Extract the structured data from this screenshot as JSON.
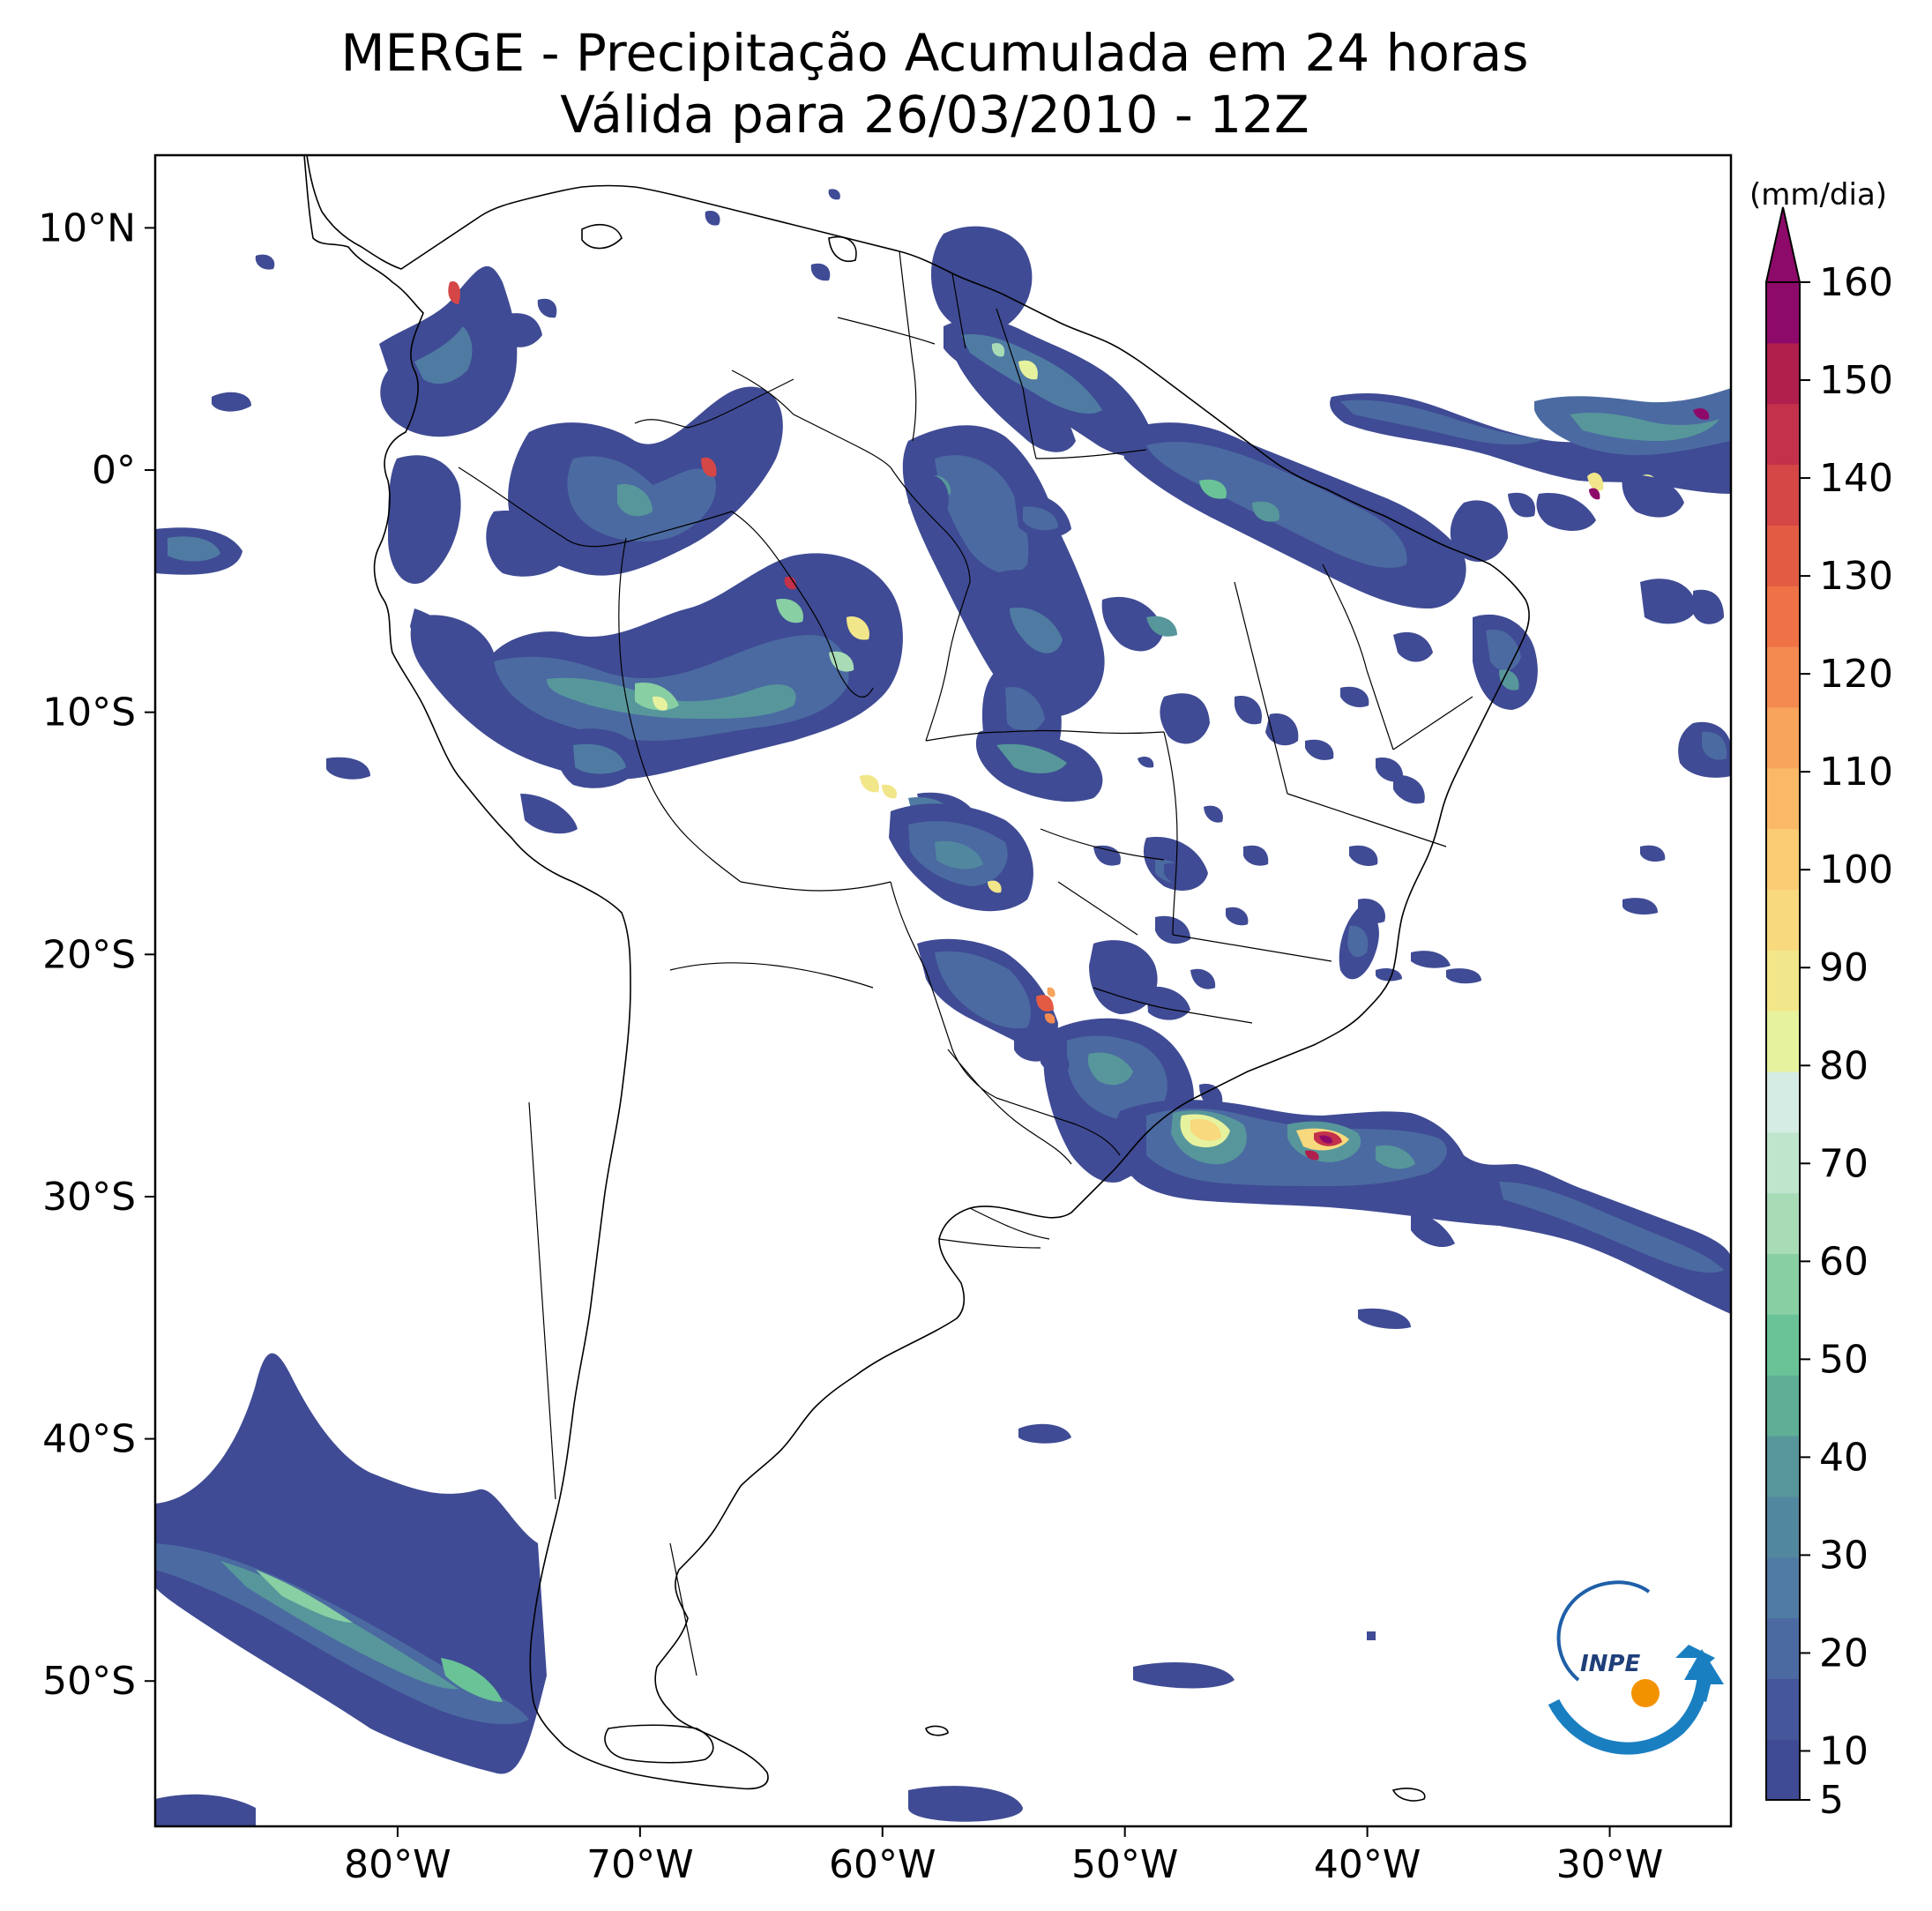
{
  "title": {
    "line1": "MERGE - Precipitação Acumulada em 24 horas",
    "line2": "Válida para 26/03/2010 - 12Z"
  },
  "map": {
    "projection": "PlateCarree",
    "lon_range": [
      -90,
      -25
    ],
    "lat_range": [
      -56,
      13
    ],
    "lon_ticks": [
      {
        "value": -80,
        "label": "80°W"
      },
      {
        "value": -70,
        "label": "70°W"
      },
      {
        "value": -60,
        "label": "60°W"
      },
      {
        "value": -50,
        "label": "50°W"
      },
      {
        "value": -40,
        "label": "40°W"
      },
      {
        "value": -30,
        "label": "30°W"
      }
    ],
    "lat_ticks": [
      {
        "value": 10,
        "label": "10°N"
      },
      {
        "value": 0,
        "label": "0°"
      },
      {
        "value": -10,
        "label": "10°S"
      },
      {
        "value": -20,
        "label": "20°S"
      },
      {
        "value": -30,
        "label": "30°S"
      },
      {
        "value": -40,
        "label": "40°S"
      },
      {
        "value": -50,
        "label": "50°S"
      }
    ]
  },
  "colorbar": {
    "unit_label": "(mm/dia)",
    "min": 5,
    "max": 160,
    "extend": "max",
    "ticks": [
      5,
      10,
      20,
      30,
      40,
      50,
      60,
      70,
      80,
      90,
      100,
      110,
      120,
      130,
      140,
      150,
      160
    ],
    "tick_labels": [
      "5",
      "10",
      "20",
      "30",
      "40",
      "50",
      "60",
      "70",
      "80",
      "90",
      "100",
      "110",
      "120",
      "130",
      "140",
      "150",
      "160"
    ],
    "colors": [
      "#3f4b94",
      "#45569a",
      "#4b6aa1",
      "#4f7ba3",
      "#52889f",
      "#57979b",
      "#5fae96",
      "#69c397",
      "#88cfa4",
      "#a8dcb6",
      "#bfe5cd",
      "#d5ece4",
      "#e7f29f",
      "#f2e68a",
      "#f8d97d",
      "#fbcc74",
      "#fbb968",
      "#f8a45c",
      "#f48a50",
      "#ef7146",
      "#e45b43",
      "#d54646",
      "#c4314a",
      "#b11f4d",
      "#8e0a6a"
    ]
  },
  "logo": {
    "text": "INPE"
  }
}
